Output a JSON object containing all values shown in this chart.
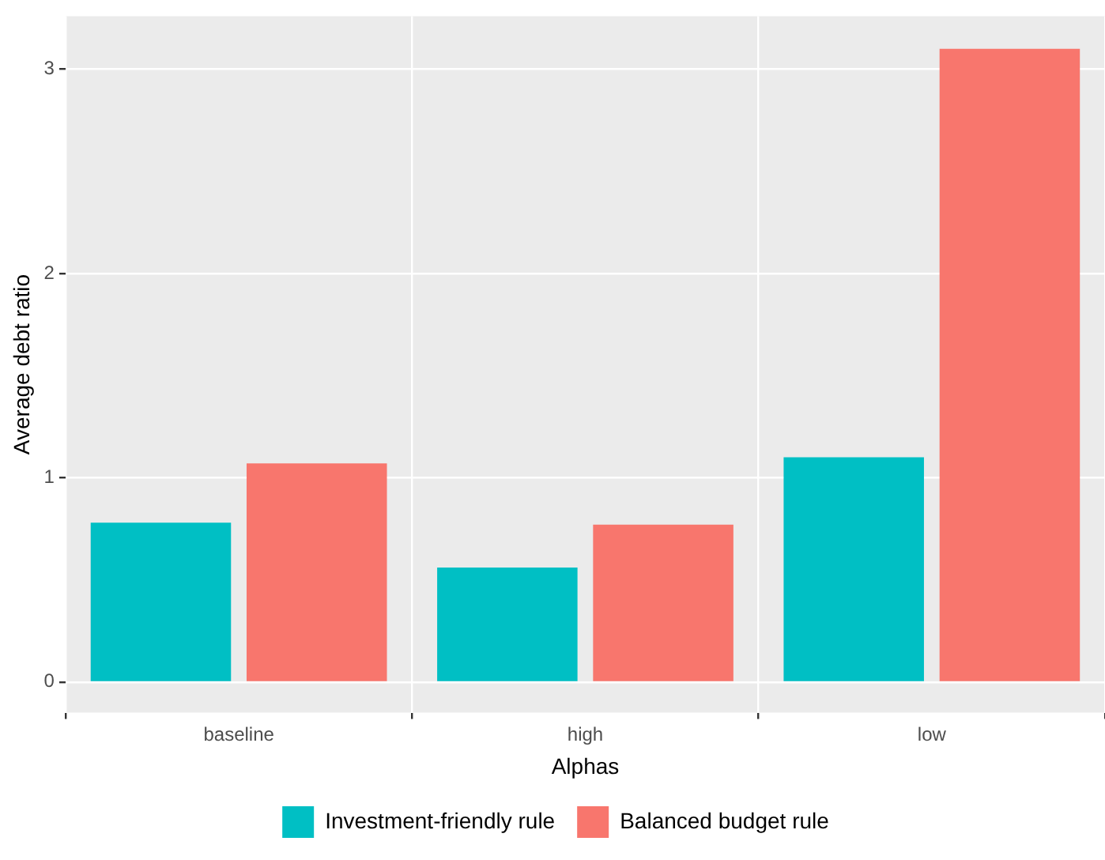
{
  "chart_data": {
    "type": "bar",
    "xlabel": "Alphas",
    "ylabel": "Average debt ratio",
    "categories": [
      "baseline",
      "high",
      "low"
    ],
    "series": [
      {
        "name": "Investment-friendly rule",
        "color": "#00bfc4",
        "values": [
          0.78,
          0.56,
          1.1
        ]
      },
      {
        "name": "Balanced budget rule",
        "color": "#f8766d",
        "values": [
          1.07,
          0.77,
          3.1
        ]
      }
    ],
    "ylim": [
      -0.15,
      3.26
    ],
    "yticks": [
      0,
      1,
      2,
      3
    ],
    "grid": true,
    "legend": "bottom"
  }
}
